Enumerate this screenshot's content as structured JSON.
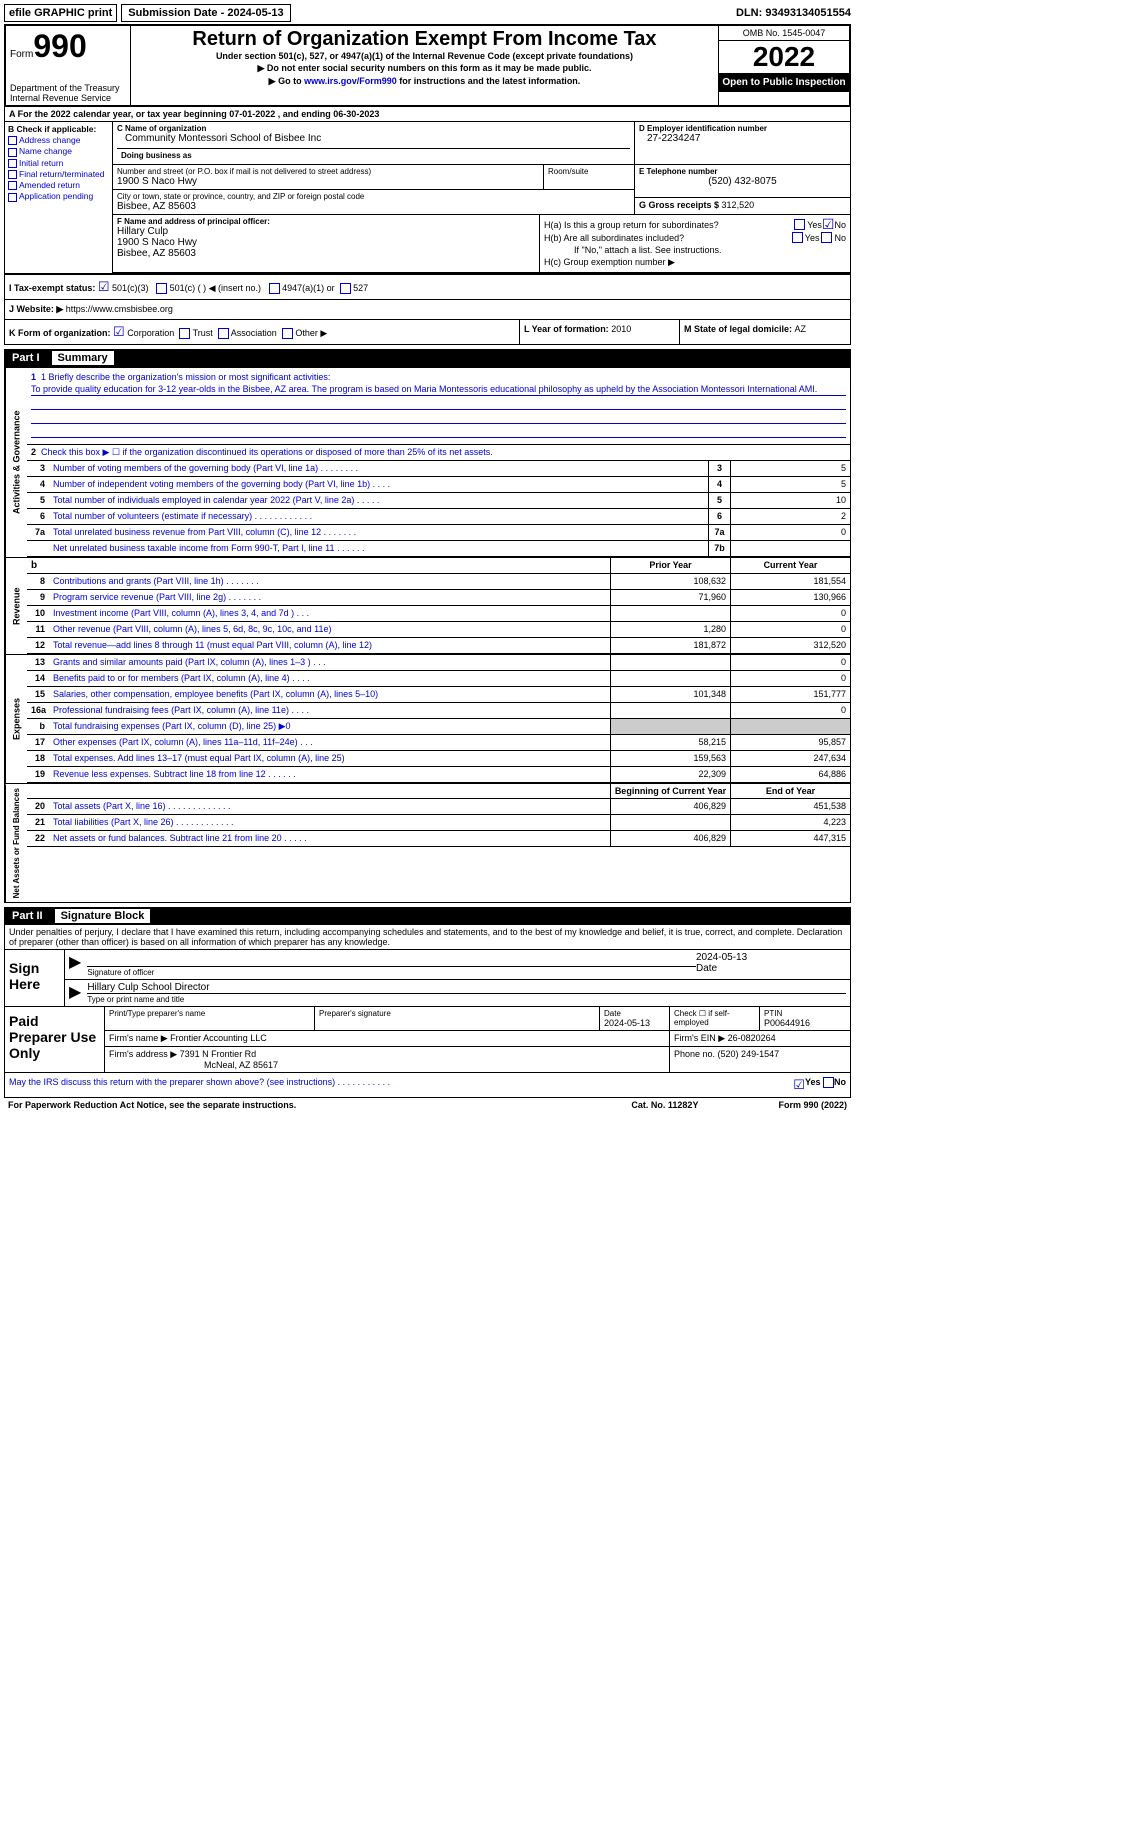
{
  "top": {
    "efile": "efile GRAPHIC print",
    "submission_prefix": "Submission Date - ",
    "submission_date": "2024-05-13",
    "dln_prefix": "DLN: ",
    "dln": "93493134051554"
  },
  "header": {
    "form_label": "Form",
    "form_number": "990",
    "title": "Return of Organization Exempt From Income Tax",
    "subtitle": "Under section 501(c), 527, or 4947(a)(1) of the Internal Revenue Code (except private foundations)",
    "line1": "▶ Do not enter social security numbers on this form as it may be made public.",
    "line2_prefix": "▶ Go to ",
    "line2_link": "www.irs.gov/Form990",
    "line2_suffix": " for instructions and the latest information.",
    "dept": "Department of the Treasury",
    "irs": "Internal Revenue Service",
    "omb": "OMB No. 1545-0047",
    "year": "2022",
    "inspection": "Open to Public Inspection"
  },
  "section_a": {
    "prefix": "A For the 2022 calendar year, or tax year beginning ",
    "begin": "07-01-2022",
    "mid": " , and ending ",
    "end": "06-30-2023"
  },
  "section_b": {
    "label": "B Check if applicable:",
    "items": [
      "Address change",
      "Name change",
      "Initial return",
      "Final return/terminated",
      "Amended return",
      "Application pending"
    ]
  },
  "section_c": {
    "name_label": "C Name of organization",
    "name": "Community Montessori School of Bisbee Inc",
    "dba_label": "Doing business as",
    "street_label": "Number and street (or P.O. box if mail is not delivered to street address)",
    "street": "1900 S Naco Hwy",
    "room_label": "Room/suite",
    "city_label": "City or town, state or province, country, and ZIP or foreign postal code",
    "city": "Bisbee, AZ  85603"
  },
  "section_d": {
    "label": "D Employer identification number",
    "value": "27-2234247"
  },
  "section_e": {
    "label": "E Telephone number",
    "value": "(520) 432-8075"
  },
  "section_g": {
    "label": "G Gross receipts $ ",
    "value": "312,520"
  },
  "section_f": {
    "label": "F Name and address of principal officer:",
    "name": "Hillary Culp",
    "street": "1900 S Naco Hwy",
    "city": "Bisbee, AZ  85603"
  },
  "section_h": {
    "ha": "H(a)  Is this a group return for subordinates?",
    "hb": "H(b)  Are all subordinates included?",
    "hb_note": "If \"No,\" attach a list. See instructions.",
    "hc": "H(c)  Group exemption number ▶",
    "yes": "Yes",
    "no": "No"
  },
  "section_i": {
    "label": "I  Tax-exempt status:",
    "opt1": "501(c)(3)",
    "opt2": "501(c) (  ) ◀ (insert no.)",
    "opt3": "4947(a)(1) or",
    "opt4": "527"
  },
  "section_j": {
    "label": "J  Website: ▶  ",
    "value": "https://www.cmsbisbee.org"
  },
  "section_k": {
    "label": "K Form of organization:",
    "opts": [
      "Corporation",
      "Trust",
      "Association",
      "Other ▶"
    ]
  },
  "section_l": {
    "label": "L Year of formation: ",
    "value": "2010"
  },
  "section_m": {
    "label": "M State of legal domicile: ",
    "value": "AZ"
  },
  "parts": {
    "part1": "Part I",
    "part1_title": "Summary",
    "part2": "Part II",
    "part2_title": "Signature Block"
  },
  "mission": {
    "label": "1  Briefly describe the organization's mission or most significant activities:",
    "text": "To provide quality education for 3-12 year-olds in the Bisbee, AZ area. The program is based on Maria Montessoris educational philosophy as upheld by the Association Montessori International AMI."
  },
  "line2": "Check this box ▶ ☐ if the organization discontinued its operations or disposed of more than 25% of its net assets.",
  "governance_lines": [
    {
      "n": "3",
      "t": "Number of voting members of the governing body (Part VI, line 1a)  .   .   .   .   .   .   .   .",
      "b": "3",
      "v": "5"
    },
    {
      "n": "4",
      "t": "Number of independent voting members of the governing body (Part VI, line 1b)   .   .   .   .",
      "b": "4",
      "v": "5"
    },
    {
      "n": "5",
      "t": "Total number of individuals employed in calendar year 2022 (Part V, line 2a)   .   .   .   .   .",
      "b": "5",
      "v": "10"
    },
    {
      "n": "6",
      "t": "Total number of volunteers (estimate if necessary)    .   .   .   .   .   .   .   .   .   .   .   .",
      "b": "6",
      "v": "2"
    },
    {
      "n": "7a",
      "t": "Total unrelated business revenue from Part VIII, column (C), line 12   .   .   .   .   .   .   .",
      "b": "7a",
      "v": "0"
    },
    {
      "n": "",
      "t": "Net unrelated business taxable income from Form 990-T, Part I, line 11   .   .   .   .   .   .",
      "b": "7b",
      "v": ""
    }
  ],
  "col_headers": {
    "b": "b",
    "prior": "Prior Year",
    "current": "Current Year",
    "beg": "Beginning of Current Year",
    "end": "End of Year"
  },
  "revenue_lines": [
    {
      "n": "8",
      "t": "Contributions and grants (Part VIII, line 1h)   .   .   .   .   .   .   .",
      "v1": "108,632",
      "v2": "181,554"
    },
    {
      "n": "9",
      "t": "Program service revenue (Part VIII, line 2g)   .   .   .   .   .   .   .",
      "v1": "71,960",
      "v2": "130,966"
    },
    {
      "n": "10",
      "t": "Investment income (Part VIII, column (A), lines 3, 4, and 7d )   .   .   .",
      "v1": "",
      "v2": "0"
    },
    {
      "n": "11",
      "t": "Other revenue (Part VIII, column (A), lines 5, 6d, 8c, 9c, 10c, and 11e)",
      "v1": "1,280",
      "v2": "0"
    },
    {
      "n": "12",
      "t": "Total revenue—add lines 8 through 11 (must equal Part VIII, column (A), line 12)",
      "v1": "181,872",
      "v2": "312,520"
    }
  ],
  "expense_lines": [
    {
      "n": "13",
      "t": "Grants and similar amounts paid (Part IX, column (A), lines 1–3 )  .   .   .",
      "v1": "",
      "v2": "0"
    },
    {
      "n": "14",
      "t": "Benefits paid to or for members (Part IX, column (A), line 4)  .   .   .   .",
      "v1": "",
      "v2": "0"
    },
    {
      "n": "15",
      "t": "Salaries, other compensation, employee benefits (Part IX, column (A), lines 5–10)",
      "v1": "101,348",
      "v2": "151,777"
    },
    {
      "n": "16a",
      "t": "Professional fundraising fees (Part IX, column (A), line 11e)   .   .   .   .",
      "v1": "",
      "v2": "0"
    },
    {
      "n": "b",
      "t": "Total fundraising expenses (Part IX, column (D), line 25) ▶0",
      "v1": "shaded",
      "v2": "shaded"
    },
    {
      "n": "17",
      "t": "Other expenses (Part IX, column (A), lines 11a–11d, 11f–24e)   .   .   .",
      "v1": "58,215",
      "v2": "95,857"
    },
    {
      "n": "18",
      "t": "Total expenses. Add lines 13–17 (must equal Part IX, column (A), line 25)",
      "v1": "159,563",
      "v2": "247,634"
    },
    {
      "n": "19",
      "t": "Revenue less expenses. Subtract line 18 from line 12   .   .   .   .   .   .",
      "v1": "22,309",
      "v2": "64,886"
    }
  ],
  "netassets_lines": [
    {
      "n": "20",
      "t": "Total assets (Part X, line 16)  .   .   .   .   .   .   .   .   .   .   .   .   .",
      "v1": "406,829",
      "v2": "451,538"
    },
    {
      "n": "21",
      "t": "Total liabilities (Part X, line 26)  .   .   .   .   .   .   .   .   .   .   .   .",
      "v1": "",
      "v2": "4,223"
    },
    {
      "n": "22",
      "t": "Net assets or fund balances. Subtract line 21 from line 20  .   .   .   .   .",
      "v1": "406,829",
      "v2": "447,315"
    }
  ],
  "vtabs": {
    "gov": "Activities & Governance",
    "rev": "Revenue",
    "exp": "Expenses",
    "net": "Net Assets or Fund Balances"
  },
  "sig_declaration": "Under penalties of perjury, I declare that I have examined this return, including accompanying schedules and statements, and to the best of my knowledge and belief, it is true, correct, and complete. Declaration of preparer (other than officer) is based on all information of which preparer has any knowledge.",
  "sign": {
    "label": "Sign Here",
    "sig_label": "Signature of officer",
    "date_label": "Date",
    "date": "2024-05-13",
    "name": "Hillary Culp  School Director",
    "name_label": "Type or print name and title"
  },
  "prep": {
    "label": "Paid Preparer Use Only",
    "r1": {
      "c1_label": "Print/Type preparer's name",
      "c2_label": "Preparer's signature",
      "c3_label": "Date",
      "c3": "2024-05-13",
      "c4_label": "Check ☐ if self-employed",
      "c5_label": "PTIN",
      "c5": "P00644916"
    },
    "r2": {
      "label": "Firm's name    ▶ ",
      "value": "Frontier Accounting LLC",
      "ein_label": "Firm's EIN ▶ ",
      "ein": "26-0820264"
    },
    "r3": {
      "label": "Firm's address ▶ ",
      "value": "7391 N Frontier Rd",
      "city": "McNeal, AZ  85617",
      "phone_label": "Phone no. ",
      "phone": "(520) 249-1547"
    }
  },
  "footer_q": "May the IRS discuss this return with the preparer shown above? (see instructions)   .   .   .   .   .   .   .   .   .   .   .",
  "footer": {
    "left": "For Paperwork Reduction Act Notice, see the separate instructions.",
    "mid": "Cat. No. 11282Y",
    "right": "Form 990 (2022)"
  }
}
